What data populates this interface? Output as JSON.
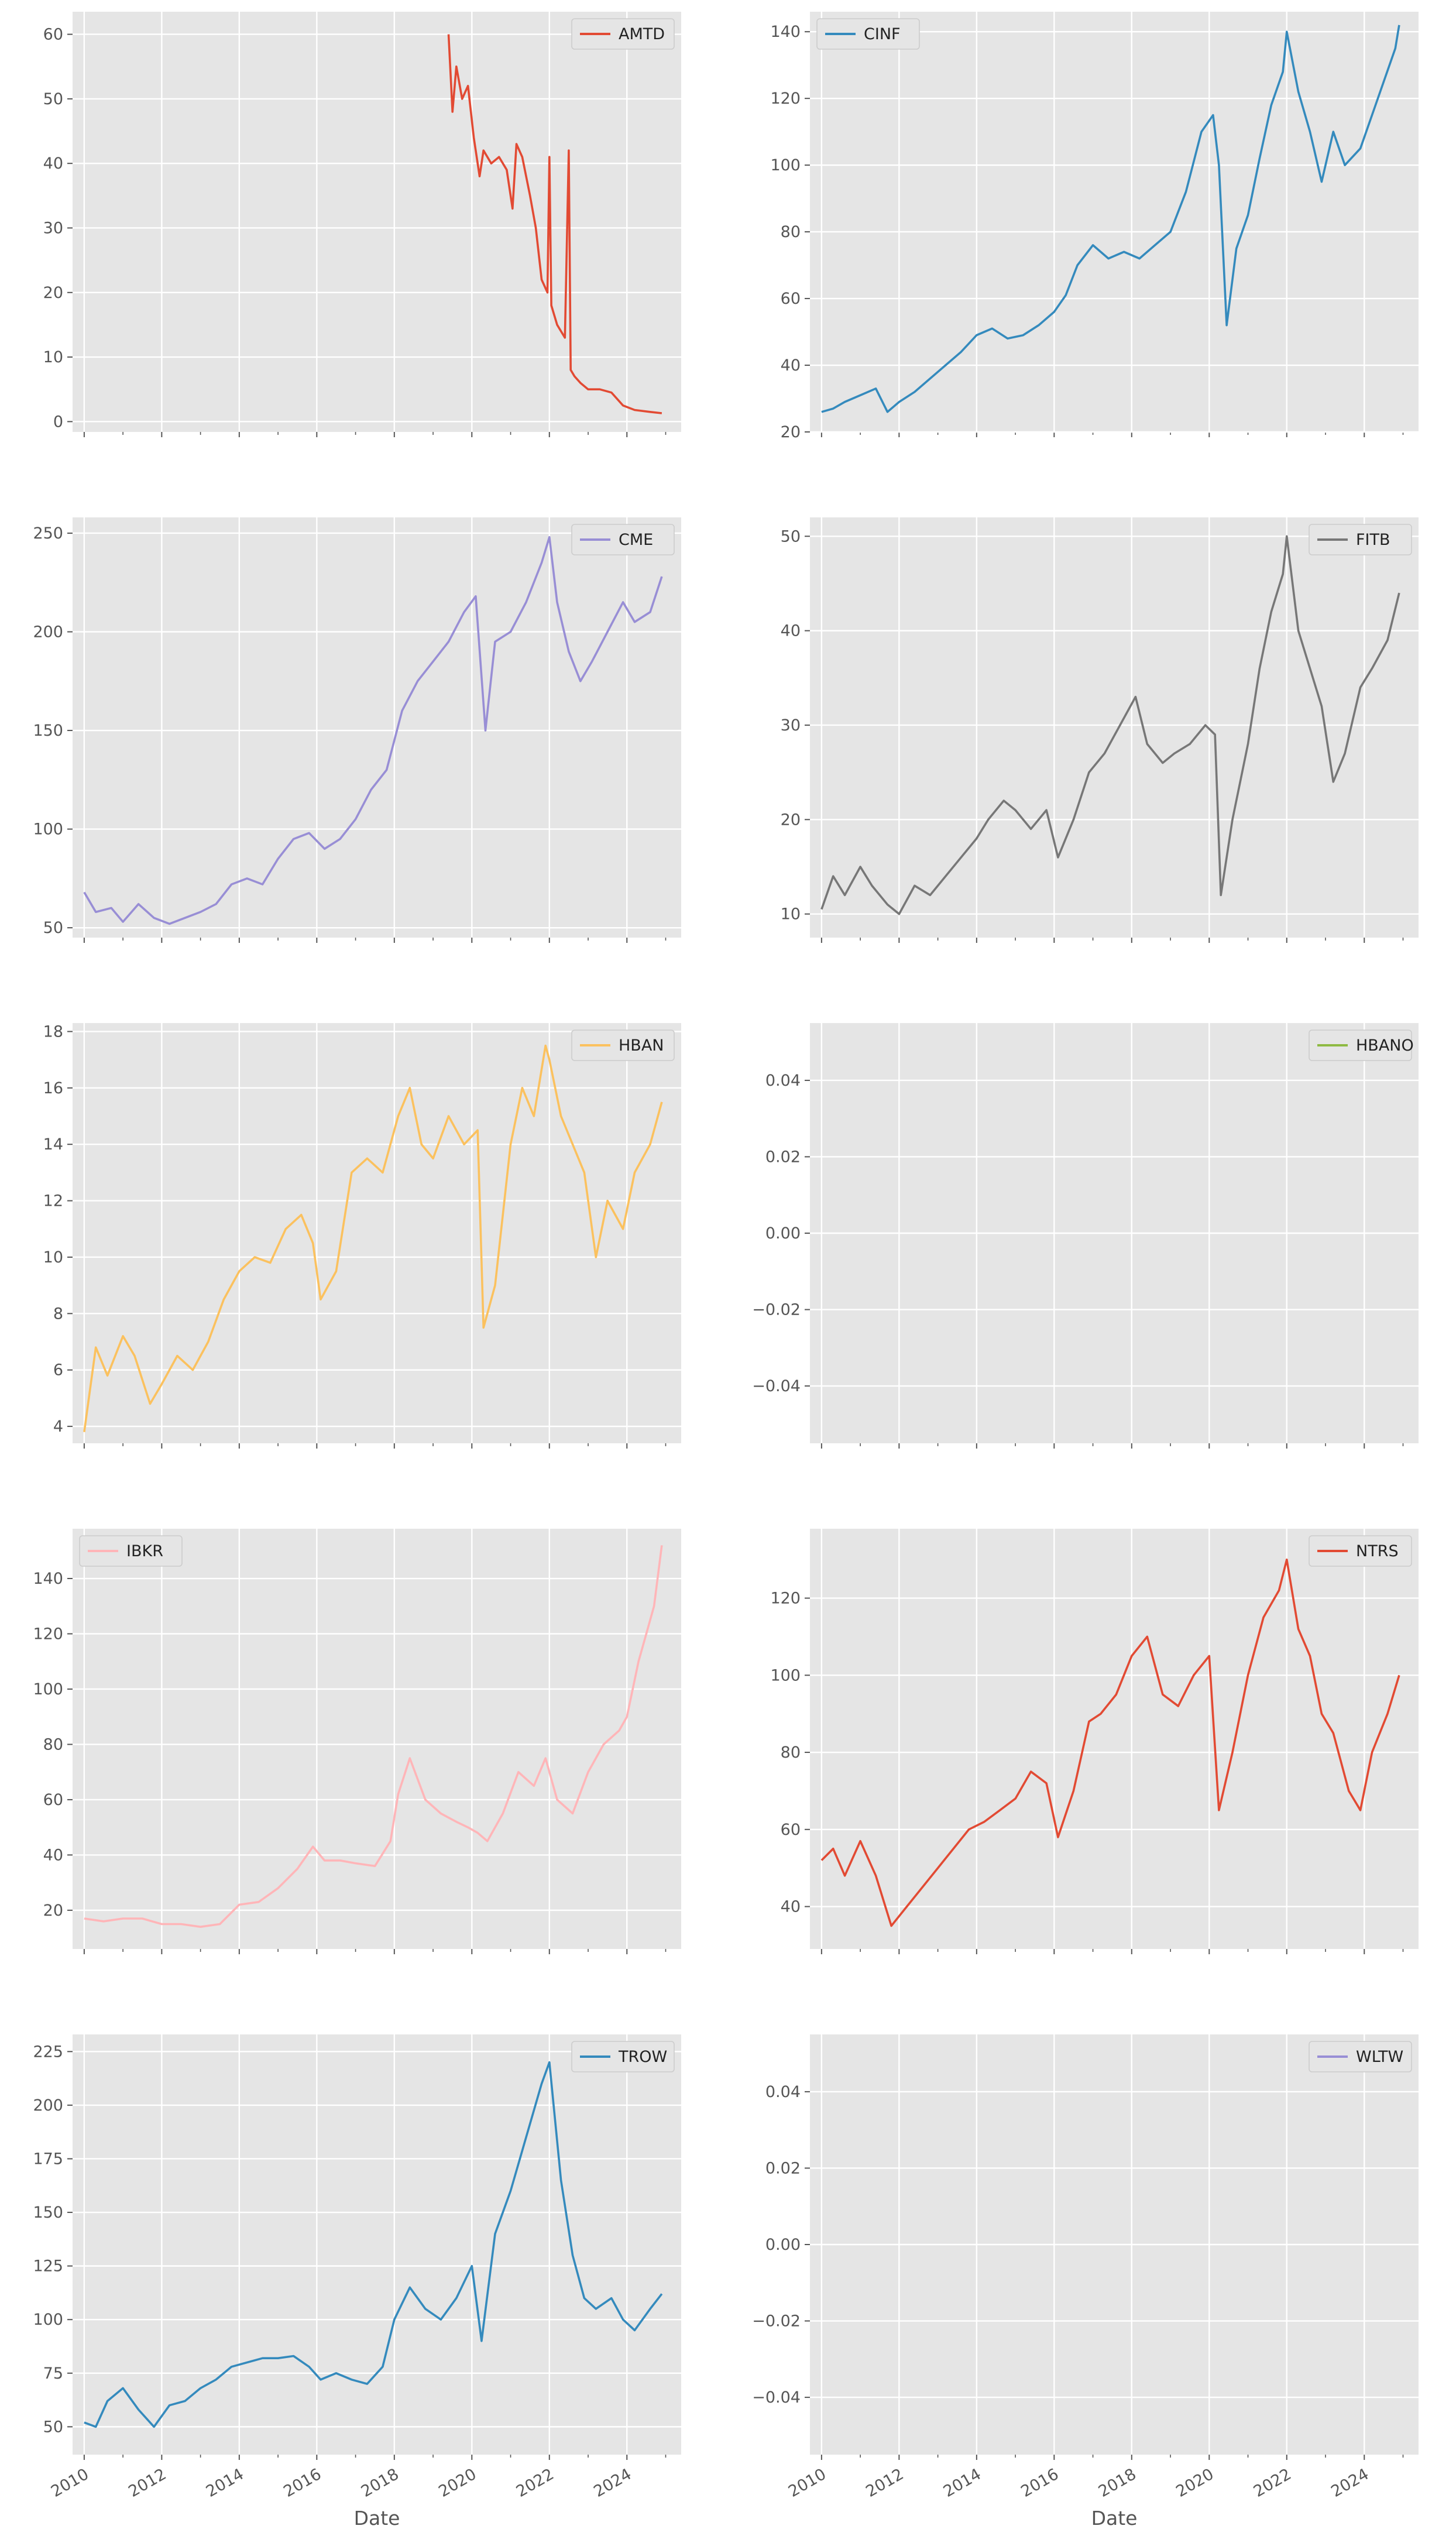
{
  "figure": {
    "x_ticks": [
      "2010",
      "2012",
      "2014",
      "2016",
      "2018",
      "2020",
      "2022",
      "2024"
    ],
    "x_label": "Date"
  },
  "chart_data": [
    {
      "type": "line",
      "series": [
        {
          "name": "AMTD",
          "color": "#E24A33"
        }
      ],
      "legend": "top-right",
      "grid": true,
      "xlim": [
        2009.7,
        2025.4
      ],
      "ylim": [
        -1.6,
        63.5
      ],
      "y_ticks": [
        "0",
        "10",
        "20",
        "30",
        "40",
        "50",
        "60"
      ],
      "y_tick_values": [
        0,
        10,
        20,
        30,
        40,
        50,
        60
      ],
      "x": [
        2019.4,
        2019.5,
        2019.6,
        2019.75,
        2019.9,
        2020.05,
        2020.2,
        2020.3,
        2020.5,
        2020.7,
        2020.9,
        2021.05,
        2021.15,
        2021.3,
        2021.5,
        2021.65,
        2021.8,
        2021.95,
        2022.0,
        2022.05,
        2022.2,
        2022.4,
        2022.5,
        2022.55,
        2022.65,
        2022.8,
        2023.0,
        2023.3,
        2023.6,
        2023.9,
        2024.2,
        2024.6,
        2024.9
      ],
      "y": [
        60,
        48,
        55,
        50,
        52,
        44,
        38,
        42,
        40,
        41,
        39,
        33,
        43,
        41,
        35,
        30,
        22,
        20,
        41,
        18,
        15,
        13,
        42,
        8,
        7,
        6,
        5,
        5,
        4.5,
        2.5,
        1.8,
        1.5,
        1.3
      ]
    },
    {
      "type": "line",
      "series": [
        {
          "name": "CINF",
          "color": "#348ABD"
        }
      ],
      "legend": "top-left",
      "grid": true,
      "xlim": [
        2009.7,
        2025.4
      ],
      "ylim": [
        20,
        146
      ],
      "y_ticks": [
        "20",
        "40",
        "60",
        "80",
        "100",
        "120",
        "140"
      ],
      "y_tick_values": [
        20,
        40,
        60,
        80,
        100,
        120,
        140
      ],
      "x": [
        2010.0,
        2010.3,
        2010.6,
        2011.0,
        2011.4,
        2011.7,
        2012.0,
        2012.4,
        2012.8,
        2013.2,
        2013.6,
        2014.0,
        2014.4,
        2014.8,
        2015.2,
        2015.6,
        2016.0,
        2016.3,
        2016.6,
        2017.0,
        2017.4,
        2017.8,
        2018.2,
        2018.6,
        2019.0,
        2019.4,
        2019.8,
        2020.1,
        2020.25,
        2020.45,
        2020.7,
        2021.0,
        2021.3,
        2021.6,
        2021.9,
        2022.0,
        2022.3,
        2022.6,
        2022.9,
        2023.2,
        2023.5,
        2023.9,
        2024.2,
        2024.5,
        2024.8,
        2024.9
      ],
      "y": [
        26,
        27,
        29,
        31,
        33,
        26,
        29,
        32,
        36,
        40,
        44,
        49,
        51,
        48,
        49,
        52,
        56,
        61,
        70,
        76,
        72,
        74,
        72,
        76,
        80,
        92,
        110,
        115,
        100,
        52,
        75,
        85,
        102,
        118,
        128,
        140,
        122,
        110,
        95,
        110,
        100,
        105,
        115,
        125,
        135,
        142
      ]
    },
    {
      "type": "line",
      "series": [
        {
          "name": "CME",
          "color": "#988ED5"
        }
      ],
      "legend": "top-right",
      "grid": true,
      "xlim": [
        2009.7,
        2025.4
      ],
      "ylim": [
        45,
        258
      ],
      "y_ticks": [
        "50",
        "100",
        "150",
        "200",
        "250"
      ],
      "y_tick_values": [
        50,
        100,
        150,
        200,
        250
      ],
      "x": [
        2010.0,
        2010.3,
        2010.7,
        2011.0,
        2011.4,
        2011.8,
        2012.2,
        2012.6,
        2013.0,
        2013.4,
        2013.8,
        2014.2,
        2014.6,
        2015.0,
        2015.4,
        2015.8,
        2016.2,
        2016.6,
        2017.0,
        2017.4,
        2017.8,
        2018.2,
        2018.6,
        2019.0,
        2019.4,
        2019.8,
        2020.1,
        2020.35,
        2020.6,
        2021.0,
        2021.4,
        2021.8,
        2022.0,
        2022.2,
        2022.5,
        2022.8,
        2023.1,
        2023.5,
        2023.9,
        2024.2,
        2024.6,
        2024.9
      ],
      "y": [
        68,
        58,
        60,
        53,
        62,
        55,
        52,
        55,
        58,
        62,
        72,
        75,
        72,
        85,
        95,
        98,
        90,
        95,
        105,
        120,
        130,
        160,
        175,
        185,
        195,
        210,
        218,
        150,
        195,
        200,
        215,
        235,
        248,
        215,
        190,
        175,
        185,
        200,
        215,
        205,
        210,
        228
      ]
    },
    {
      "type": "line",
      "series": [
        {
          "name": "FITB",
          "color": "#777777"
        }
      ],
      "legend": "top-right",
      "grid": true,
      "xlim": [
        2009.7,
        2025.4
      ],
      "ylim": [
        7.5,
        52
      ],
      "y_ticks": [
        "10",
        "20",
        "30",
        "40",
        "50"
      ],
      "y_tick_values": [
        10,
        20,
        30,
        40,
        50
      ],
      "x": [
        2010.0,
        2010.3,
        2010.6,
        2011.0,
        2011.3,
        2011.7,
        2012.0,
        2012.4,
        2012.8,
        2013.2,
        2013.6,
        2014.0,
        2014.3,
        2014.7,
        2015.0,
        2015.4,
        2015.8,
        2016.1,
        2016.5,
        2016.9,
        2017.3,
        2017.7,
        2018.1,
        2018.4,
        2018.8,
        2019.1,
        2019.5,
        2019.9,
        2020.15,
        2020.3,
        2020.6,
        2021.0,
        2021.3,
        2021.6,
        2021.9,
        2022.0,
        2022.3,
        2022.6,
        2022.9,
        2023.2,
        2023.5,
        2023.9,
        2024.2,
        2024.6,
        2024.9
      ],
      "y": [
        10.5,
        14,
        12,
        15,
        13,
        11,
        10,
        13,
        12,
        14,
        16,
        18,
        20,
        22,
        21,
        19,
        21,
        16,
        20,
        25,
        27,
        30,
        33,
        28,
        26,
        27,
        28,
        30,
        29,
        12,
        20,
        28,
        36,
        42,
        46,
        50,
        40,
        36,
        32,
        24,
        27,
        34,
        36,
        39,
        44
      ]
    },
    {
      "type": "line",
      "series": [
        {
          "name": "HBAN",
          "color": "#FBC15E"
        }
      ],
      "legend": "top-right",
      "grid": true,
      "xlim": [
        2009.7,
        2025.4
      ],
      "ylim": [
        3.4,
        18.3
      ],
      "y_ticks": [
        "4",
        "6",
        "8",
        "10",
        "12",
        "14",
        "16",
        "18"
      ],
      "y_tick_values": [
        4,
        6,
        8,
        10,
        12,
        14,
        16,
        18
      ],
      "x": [
        2010.0,
        2010.3,
        2010.6,
        2011.0,
        2011.3,
        2011.7,
        2012.0,
        2012.4,
        2012.8,
        2013.2,
        2013.6,
        2014.0,
        2014.4,
        2014.8,
        2015.2,
        2015.6,
        2015.9,
        2016.1,
        2016.5,
        2016.9,
        2017.3,
        2017.7,
        2018.1,
        2018.4,
        2018.7,
        2019.0,
        2019.4,
        2019.8,
        2020.15,
        2020.3,
        2020.6,
        2021.0,
        2021.3,
        2021.6,
        2021.9,
        2022.0,
        2022.3,
        2022.6,
        2022.9,
        2023.2,
        2023.5,
        2023.9,
        2024.2,
        2024.6,
        2024.9
      ],
      "y": [
        3.8,
        6.8,
        5.8,
        7.2,
        6.5,
        4.8,
        5.5,
        6.5,
        6.0,
        7.0,
        8.5,
        9.5,
        10,
        9.8,
        11,
        11.5,
        10.5,
        8.5,
        9.5,
        13,
        13.5,
        13,
        15,
        16,
        14,
        13.5,
        15,
        14,
        14.5,
        7.5,
        9,
        14,
        16,
        15,
        17.5,
        17,
        15,
        14,
        13,
        10,
        12,
        11,
        13,
        14,
        15.5
      ]
    },
    {
      "type": "line",
      "series": [
        {
          "name": "HBANO",
          "color": "#8EBA42"
        }
      ],
      "legend": "top-right",
      "grid": true,
      "xlim": [
        2009.7,
        2025.4
      ],
      "ylim": [
        -0.055,
        0.055
      ],
      "y_ticks": [
        "0.04",
        "0.02",
        "0.00",
        "−0.02",
        "−0.04"
      ],
      "y_tick_values": [
        0.04,
        0.02,
        0.0,
        -0.02,
        -0.04
      ],
      "x": [],
      "y": []
    },
    {
      "type": "line",
      "series": [
        {
          "name": "IBKR",
          "color": "#FFB5B8"
        }
      ],
      "legend": "top-left",
      "grid": true,
      "xlim": [
        2009.7,
        2025.4
      ],
      "ylim": [
        6,
        158
      ],
      "y_ticks": [
        "20",
        "40",
        "60",
        "80",
        "100",
        "120",
        "140"
      ],
      "y_tick_values": [
        20,
        40,
        60,
        80,
        100,
        120,
        140
      ],
      "x": [
        2010.0,
        2010.5,
        2011.0,
        2011.5,
        2012.0,
        2012.5,
        2013.0,
        2013.5,
        2014.0,
        2014.5,
        2015.0,
        2015.5,
        2015.9,
        2016.2,
        2016.6,
        2017.0,
        2017.5,
        2017.9,
        2018.1,
        2018.4,
        2018.8,
        2019.2,
        2019.6,
        2019.9,
        2020.15,
        2020.4,
        2020.8,
        2021.2,
        2021.6,
        2021.9,
        2022.2,
        2022.6,
        2023.0,
        2023.4,
        2023.8,
        2024.0,
        2024.3,
        2024.5,
        2024.7,
        2024.9
      ],
      "y": [
        17,
        16,
        17,
        17,
        15,
        15,
        14,
        15,
        22,
        23,
        28,
        35,
        43,
        38,
        38,
        37,
        36,
        45,
        62,
        75,
        60,
        55,
        52,
        50,
        48,
        45,
        55,
        70,
        65,
        75,
        60,
        55,
        70,
        80,
        85,
        90,
        110,
        120,
        130,
        152
      ]
    },
    {
      "type": "line",
      "series": [
        {
          "name": "NTRS",
          "color": "#E24A33"
        }
      ],
      "legend": "top-right",
      "grid": true,
      "xlim": [
        2009.7,
        2025.4
      ],
      "ylim": [
        29,
        138
      ],
      "y_ticks": [
        "40",
        "60",
        "80",
        "100",
        "120"
      ],
      "y_tick_values": [
        40,
        60,
        80,
        100,
        120
      ],
      "x": [
        2010.0,
        2010.3,
        2010.6,
        2011.0,
        2011.4,
        2011.8,
        2012.2,
        2012.6,
        2013.0,
        2013.4,
        2013.8,
        2014.2,
        2014.6,
        2015.0,
        2015.4,
        2015.8,
        2016.1,
        2016.5,
        2016.9,
        2017.2,
        2017.6,
        2018.0,
        2018.4,
        2018.8,
        2019.2,
        2019.6,
        2020.0,
        2020.25,
        2020.6,
        2021.0,
        2021.4,
        2021.8,
        2022.0,
        2022.3,
        2022.6,
        2022.9,
        2023.2,
        2023.6,
        2023.9,
        2024.2,
        2024.6,
        2024.9
      ],
      "y": [
        52,
        55,
        48,
        57,
        48,
        35,
        40,
        45,
        50,
        55,
        60,
        62,
        65,
        68,
        75,
        72,
        58,
        70,
        88,
        90,
        95,
        105,
        110,
        95,
        92,
        100,
        105,
        65,
        80,
        100,
        115,
        122,
        130,
        112,
        105,
        90,
        85,
        70,
        65,
        80,
        90,
        100
      ]
    },
    {
      "type": "line",
      "series": [
        {
          "name": "TROW",
          "color": "#348ABD"
        }
      ],
      "legend": "top-right",
      "grid": true,
      "xlim": [
        2009.7,
        2025.4
      ],
      "ylim": [
        37,
        233
      ],
      "y_ticks": [
        "50",
        "75",
        "100",
        "125",
        "150",
        "175",
        "200",
        "225"
      ],
      "y_tick_values": [
        50,
        75,
        100,
        125,
        150,
        175,
        200,
        225
      ],
      "x": [
        2010.0,
        2010.3,
        2010.6,
        2011.0,
        2011.4,
        2011.8,
        2012.2,
        2012.6,
        2013.0,
        2013.4,
        2013.8,
        2014.2,
        2014.6,
        2015.0,
        2015.4,
        2015.8,
        2016.1,
        2016.5,
        2016.9,
        2017.3,
        2017.7,
        2018.0,
        2018.4,
        2018.8,
        2019.2,
        2019.6,
        2020.0,
        2020.25,
        2020.6,
        2021.0,
        2021.4,
        2021.8,
        2022.0,
        2022.3,
        2022.6,
        2022.9,
        2023.2,
        2023.6,
        2023.9,
        2024.2,
        2024.6,
        2024.9
      ],
      "y": [
        52,
        50,
        62,
        68,
        58,
        50,
        60,
        62,
        68,
        72,
        78,
        80,
        82,
        82,
        83,
        78,
        72,
        75,
        72,
        70,
        78,
        100,
        115,
        105,
        100,
        110,
        125,
        90,
        140,
        160,
        185,
        210,
        220,
        165,
        130,
        110,
        105,
        110,
        100,
        95,
        105,
        112
      ]
    },
    {
      "type": "line",
      "series": [
        {
          "name": "WLTW",
          "color": "#988ED5"
        }
      ],
      "legend": "top-right",
      "grid": true,
      "xlim": [
        2009.7,
        2025.4
      ],
      "ylim": [
        -0.055,
        0.055
      ],
      "y_ticks": [
        "0.04",
        "0.02",
        "0.00",
        "−0.02",
        "−0.04"
      ],
      "y_tick_values": [
        0.04,
        0.02,
        0.0,
        -0.02,
        -0.04
      ],
      "x": [],
      "y": []
    }
  ]
}
